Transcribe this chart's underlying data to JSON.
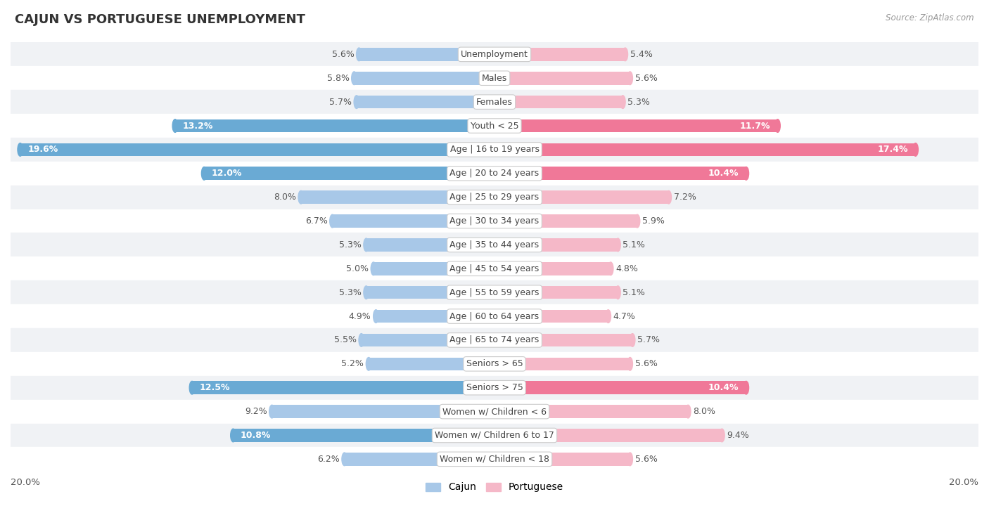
{
  "title": "CAJUN VS PORTUGUESE UNEMPLOYMENT",
  "source": "Source: ZipAtlas.com",
  "categories": [
    "Unemployment",
    "Males",
    "Females",
    "Youth < 25",
    "Age | 16 to 19 years",
    "Age | 20 to 24 years",
    "Age | 25 to 29 years",
    "Age | 30 to 34 years",
    "Age | 35 to 44 years",
    "Age | 45 to 54 years",
    "Age | 55 to 59 years",
    "Age | 60 to 64 years",
    "Age | 65 to 74 years",
    "Seniors > 65",
    "Seniors > 75",
    "Women w/ Children < 6",
    "Women w/ Children 6 to 17",
    "Women w/ Children < 18"
  ],
  "cajun": [
    5.6,
    5.8,
    5.7,
    13.2,
    19.6,
    12.0,
    8.0,
    6.7,
    5.3,
    5.0,
    5.3,
    4.9,
    5.5,
    5.2,
    12.5,
    9.2,
    10.8,
    6.2
  ],
  "portuguese": [
    5.4,
    5.6,
    5.3,
    11.7,
    17.4,
    10.4,
    7.2,
    5.9,
    5.1,
    4.8,
    5.1,
    4.7,
    5.7,
    5.6,
    10.4,
    8.0,
    9.4,
    5.6
  ],
  "cajun_color_light": "#a8c8e8",
  "cajun_color_strong": "#6aaad4",
  "portuguese_color_light": "#f5b8c8",
  "portuguese_color_strong": "#f07898",
  "row_bg_even": "#f0f2f5",
  "row_bg_odd": "#ffffff",
  "max_val": 20.0,
  "threshold": 10.0,
  "title_fontsize": 13,
  "label_fontsize": 9,
  "value_fontsize": 9
}
